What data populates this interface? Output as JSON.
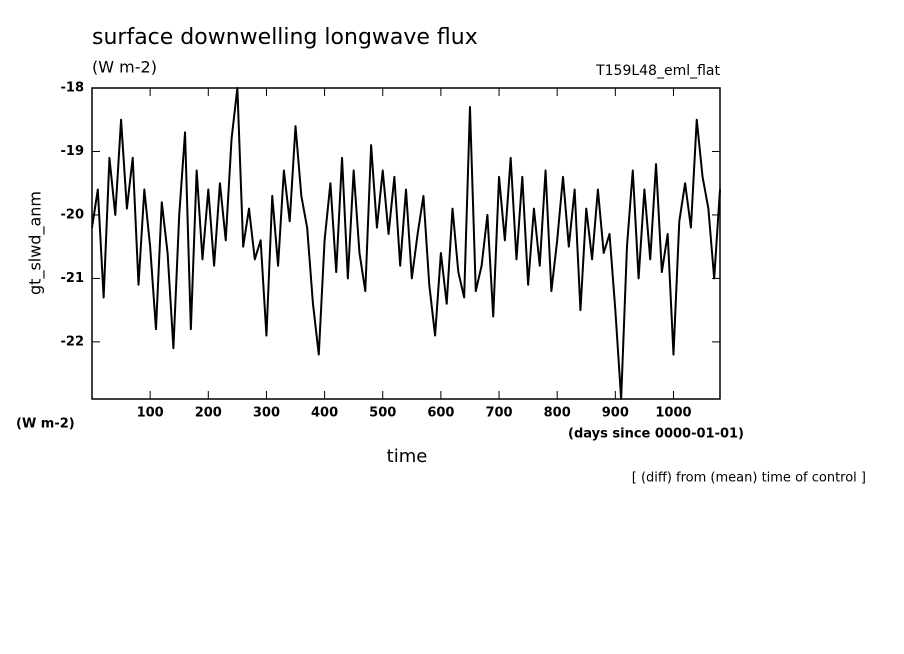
{
  "chart_data": {
    "type": "line",
    "title": "surface downwelling longwave flux",
    "units": "(W m-2)",
    "experiment": "T159L48_eml_flat",
    "y_label": "gt_slwd_anm",
    "y_units": "(W m-2)",
    "x_units": "(days since 0000-01-01)",
    "x_label": "time",
    "note": "[ (diff) from (mean) time of control ]",
    "xlim": [
      0,
      1080
    ],
    "ylim": [
      -22.9,
      -18
    ],
    "xticks": [
      100,
      200,
      300,
      400,
      500,
      600,
      700,
      800,
      900,
      1000
    ],
    "yticks": [
      -22,
      -21,
      -20,
      -19,
      -18
    ],
    "x": [
      0,
      10,
      20,
      30,
      40,
      50,
      60,
      70,
      80,
      90,
      100,
      110,
      120,
      130,
      140,
      150,
      160,
      170,
      180,
      190,
      200,
      210,
      220,
      230,
      240,
      250,
      260,
      270,
      280,
      290,
      300,
      310,
      320,
      330,
      340,
      350,
      360,
      370,
      380,
      390,
      400,
      410,
      420,
      430,
      440,
      450,
      460,
      470,
      480,
      490,
      500,
      510,
      520,
      530,
      540,
      550,
      560,
      570,
      580,
      590,
      600,
      610,
      620,
      630,
      640,
      650,
      660,
      670,
      680,
      690,
      700,
      710,
      720,
      730,
      740,
      750,
      760,
      770,
      780,
      790,
      800,
      810,
      820,
      830,
      840,
      850,
      860,
      870,
      880,
      890,
      900,
      910,
      920,
      930,
      940,
      950,
      960,
      970,
      980,
      990,
      1000,
      1010,
      1020,
      1030,
      1040,
      1050,
      1060,
      1070,
      1080
    ],
    "series": [
      {
        "color": "#000000",
        "values": [
          -20.2,
          -19.6,
          -21.3,
          -19.1,
          -20.0,
          -18.5,
          -19.9,
          -19.1,
          -21.1,
          -19.6,
          -20.5,
          -21.8,
          -19.8,
          -20.6,
          -22.1,
          -20.0,
          -18.7,
          -21.8,
          -19.3,
          -20.7,
          -19.6,
          -20.8,
          -19.5,
          -20.4,
          -18.8,
          -18.0,
          -20.5,
          -19.9,
          -20.7,
          -20.4,
          -21.9,
          -19.7,
          -20.8,
          -19.3,
          -20.1,
          -18.6,
          -19.7,
          -20.2,
          -21.4,
          -22.2,
          -20.4,
          -19.5,
          -20.9,
          -19.1,
          -21.0,
          -19.3,
          -20.6,
          -21.2,
          -18.9,
          -20.2,
          -19.3,
          -20.3,
          -19.4,
          -20.8,
          -19.6,
          -21.0,
          -20.3,
          -19.7,
          -21.1,
          -21.9,
          -20.6,
          -21.4,
          -19.9,
          -20.9,
          -21.3,
          -18.3,
          -21.2,
          -20.8,
          -20.0,
          -21.6,
          -19.4,
          -20.4,
          -19.1,
          -20.7,
          -19.4,
          -21.1,
          -19.9,
          -20.8,
          -19.3,
          -21.2,
          -20.4,
          -19.4,
          -20.5,
          -19.6,
          -21.5,
          -19.9,
          -20.7,
          -19.6,
          -20.6,
          -20.3,
          -21.5,
          -22.9,
          -20.5,
          -19.3,
          -21.0,
          -19.6,
          -20.7,
          -19.2,
          -20.9,
          -20.3,
          -22.2,
          -20.1,
          -19.5,
          -20.2,
          -18.5,
          -19.4,
          -19.9,
          -21.0,
          -19.6
        ]
      }
    ]
  }
}
